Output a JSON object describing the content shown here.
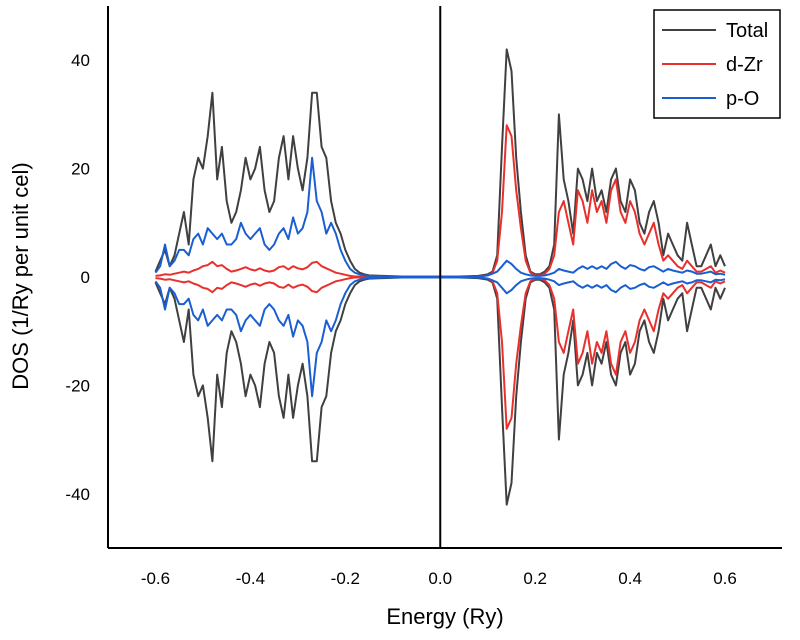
{
  "chart_data": {
    "type": "line",
    "title": "",
    "xlabel": "Energy (Ry)",
    "ylabel": "DOS (1/Ry per unit cel)",
    "xlim": [
      -0.7,
      0.72
    ],
    "ylim": [
      -50,
      50
    ],
    "xticks": [
      -0.6,
      -0.4,
      -0.2,
      0.0,
      0.2,
      0.4,
      0.6
    ],
    "xtick_labels": [
      "-0.6",
      "-0.4",
      "-0.2",
      "0.0",
      "0.2",
      "0.4",
      "0.6"
    ],
    "yticks": [
      40,
      20,
      0,
      -20,
      -40
    ],
    "ytick_labels": [
      "40",
      "20",
      "0",
      "-20",
      "-40"
    ],
    "vertical_line_x": 0.0,
    "grid": false,
    "legend_position": "top-right",
    "mirrored": true,
    "series": [
      {
        "name": "Total",
        "color": "#404040",
        "x": [
          -0.6,
          -0.59,
          -0.58,
          -0.57,
          -0.56,
          -0.55,
          -0.54,
          -0.53,
          -0.52,
          -0.51,
          -0.5,
          -0.49,
          -0.48,
          -0.47,
          -0.46,
          -0.45,
          -0.44,
          -0.43,
          -0.42,
          -0.41,
          -0.4,
          -0.39,
          -0.38,
          -0.37,
          -0.36,
          -0.35,
          -0.34,
          -0.33,
          -0.32,
          -0.31,
          -0.3,
          -0.29,
          -0.28,
          -0.27,
          -0.26,
          -0.25,
          -0.24,
          -0.23,
          -0.22,
          -0.21,
          -0.2,
          -0.19,
          -0.18,
          -0.17,
          -0.16,
          -0.15,
          -0.12,
          -0.08,
          -0.04,
          0.0,
          0.04,
          0.08,
          0.1,
          0.11,
          0.12,
          0.13,
          0.14,
          0.15,
          0.16,
          0.17,
          0.18,
          0.19,
          0.2,
          0.21,
          0.22,
          0.23,
          0.24,
          0.25,
          0.26,
          0.27,
          0.28,
          0.29,
          0.3,
          0.31,
          0.32,
          0.33,
          0.34,
          0.35,
          0.36,
          0.37,
          0.38,
          0.39,
          0.4,
          0.41,
          0.42,
          0.43,
          0.44,
          0.45,
          0.46,
          0.47,
          0.48,
          0.49,
          0.5,
          0.51,
          0.52,
          0.53,
          0.54,
          0.55,
          0.56,
          0.57,
          0.58,
          0.59,
          0.6
        ],
        "values": [
          1,
          3,
          5,
          2,
          4,
          8,
          12,
          6,
          18,
          22,
          20,
          26,
          34,
          18,
          24,
          14,
          10,
          12,
          16,
          22,
          18,
          20,
          24,
          16,
          12,
          14,
          22,
          26,
          18,
          26,
          20,
          16,
          22,
          34,
          34,
          24,
          22,
          14,
          10,
          8,
          5,
          3,
          1.5,
          0.8,
          0.5,
          0.3,
          0.2,
          0.1,
          0.1,
          0.1,
          0.1,
          0.2,
          0.5,
          1,
          4,
          24,
          42,
          38,
          22,
          12,
          4,
          1,
          0.5,
          0.5,
          1,
          2,
          6,
          30,
          18,
          14,
          8,
          20,
          18,
          14,
          20,
          14,
          16,
          12,
          18,
          20,
          14,
          12,
          18,
          16,
          10,
          8,
          12,
          14,
          10,
          4,
          8,
          6,
          4,
          3,
          10,
          6,
          2,
          2,
          4,
          6,
          2,
          4,
          2
        ]
      },
      {
        "name": "d-Zr",
        "color": "#e8302c",
        "x": [
          -0.6,
          -0.59,
          -0.58,
          -0.57,
          -0.56,
          -0.55,
          -0.54,
          -0.53,
          -0.52,
          -0.51,
          -0.5,
          -0.49,
          -0.48,
          -0.47,
          -0.46,
          -0.45,
          -0.44,
          -0.43,
          -0.42,
          -0.41,
          -0.4,
          -0.39,
          -0.38,
          -0.37,
          -0.36,
          -0.35,
          -0.34,
          -0.33,
          -0.32,
          -0.31,
          -0.3,
          -0.29,
          -0.28,
          -0.27,
          -0.26,
          -0.25,
          -0.24,
          -0.23,
          -0.22,
          -0.21,
          -0.2,
          -0.19,
          -0.18,
          -0.17,
          -0.16,
          -0.15,
          -0.12,
          -0.08,
          -0.04,
          0.0,
          0.04,
          0.08,
          0.1,
          0.11,
          0.12,
          0.13,
          0.14,
          0.15,
          0.16,
          0.17,
          0.18,
          0.19,
          0.2,
          0.21,
          0.22,
          0.23,
          0.24,
          0.25,
          0.26,
          0.27,
          0.28,
          0.29,
          0.3,
          0.31,
          0.32,
          0.33,
          0.34,
          0.35,
          0.36,
          0.37,
          0.38,
          0.39,
          0.4,
          0.41,
          0.42,
          0.43,
          0.44,
          0.45,
          0.46,
          0.47,
          0.48,
          0.49,
          0.5,
          0.51,
          0.52,
          0.53,
          0.54,
          0.55,
          0.56,
          0.57,
          0.58,
          0.59,
          0.6
        ],
        "values": [
          0.2,
          0.3,
          0.5,
          0.4,
          0.6,
          0.8,
          1,
          0.8,
          1.2,
          1.5,
          2,
          2.2,
          2.8,
          2,
          2.2,
          1.5,
          1,
          1.2,
          1.5,
          1.8,
          1.4,
          1.2,
          1.6,
          1.2,
          1,
          1.2,
          1.8,
          2,
          1.4,
          2,
          1.6,
          1.4,
          1.8,
          2.6,
          2.8,
          2,
          1.6,
          1.2,
          0.8,
          0.6,
          0.4,
          0.2,
          0.1,
          0.1,
          0.1,
          0.1,
          0.1,
          0.1,
          0.1,
          0.1,
          0.1,
          0.1,
          0.3,
          0.8,
          3,
          12,
          28,
          26,
          16,
          9,
          3,
          0.8,
          0.3,
          0.3,
          0.6,
          1.5,
          4,
          12,
          14,
          10,
          6,
          16,
          14,
          10,
          16,
          12,
          14,
          10,
          16,
          18,
          12,
          10,
          14,
          12,
          8,
          6,
          8,
          10,
          6,
          3,
          4,
          3,
          2,
          1.5,
          3,
          2,
          1,
          1,
          1.5,
          2,
          0.8,
          1.2,
          0.8
        ]
      },
      {
        "name": "p-O",
        "color": "#1a5fd1",
        "x": [
          -0.6,
          -0.59,
          -0.58,
          -0.57,
          -0.56,
          -0.55,
          -0.54,
          -0.53,
          -0.52,
          -0.51,
          -0.5,
          -0.49,
          -0.48,
          -0.47,
          -0.46,
          -0.45,
          -0.44,
          -0.43,
          -0.42,
          -0.41,
          -0.4,
          -0.39,
          -0.38,
          -0.37,
          -0.36,
          -0.35,
          -0.34,
          -0.33,
          -0.32,
          -0.31,
          -0.3,
          -0.29,
          -0.28,
          -0.27,
          -0.26,
          -0.25,
          -0.24,
          -0.23,
          -0.22,
          -0.21,
          -0.2,
          -0.19,
          -0.18,
          -0.17,
          -0.16,
          -0.15,
          -0.12,
          -0.08,
          -0.04,
          0.0,
          0.04,
          0.08,
          0.1,
          0.11,
          0.12,
          0.13,
          0.14,
          0.15,
          0.16,
          0.17,
          0.18,
          0.19,
          0.2,
          0.21,
          0.22,
          0.23,
          0.24,
          0.25,
          0.26,
          0.27,
          0.28,
          0.29,
          0.3,
          0.31,
          0.32,
          0.33,
          0.34,
          0.35,
          0.36,
          0.37,
          0.38,
          0.39,
          0.4,
          0.41,
          0.42,
          0.43,
          0.44,
          0.45,
          0.46,
          0.47,
          0.48,
          0.49,
          0.5,
          0.51,
          0.52,
          0.53,
          0.54,
          0.55,
          0.56,
          0.57,
          0.58,
          0.59,
          0.6
        ],
        "values": [
          0.8,
          2,
          6,
          2,
          3,
          5,
          5,
          4,
          7,
          8,
          6,
          9,
          8,
          7,
          8,
          6,
          6,
          7,
          10,
          8,
          7,
          8,
          9,
          6,
          5,
          6,
          8,
          9,
          7,
          11,
          8,
          9,
          12,
          22,
          14,
          12,
          8,
          10,
          8,
          5,
          3,
          1.5,
          0.8,
          0.5,
          0.3,
          0.2,
          0.1,
          0.1,
          0.1,
          0.1,
          0.1,
          0.1,
          0.3,
          0.6,
          1,
          2,
          3,
          2.4,
          1.5,
          0.8,
          0.5,
          0.3,
          0.2,
          0.2,
          0.3,
          0.5,
          0.8,
          1.5,
          1.2,
          1,
          0.8,
          1.5,
          2,
          1.5,
          2,
          1.5,
          2,
          1.5,
          2.4,
          2.8,
          2,
          1.5,
          2.2,
          2,
          1.5,
          1.2,
          1.8,
          2,
          1.5,
          1,
          1.5,
          1.2,
          1,
          0.8,
          1.2,
          1,
          0.6,
          0.6,
          0.8,
          1,
          0.5,
          0.6,
          0.4
        ]
      }
    ]
  }
}
